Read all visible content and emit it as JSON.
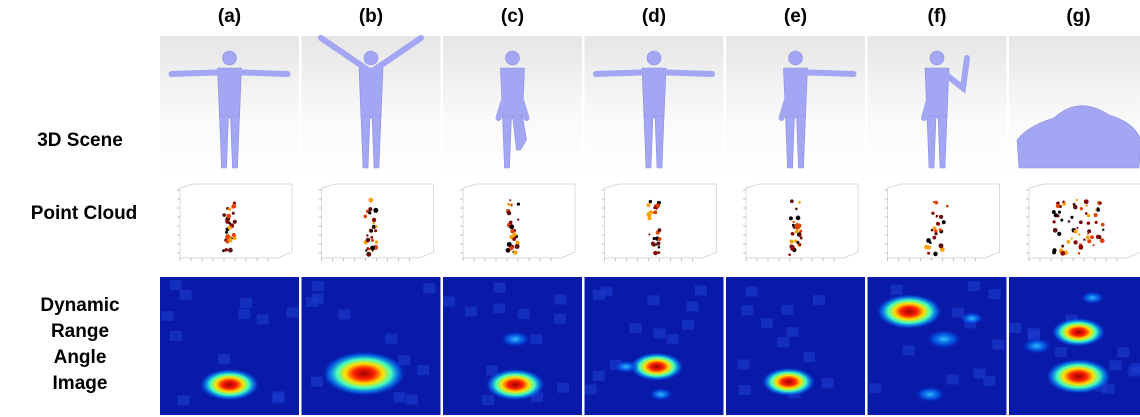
{
  "columns": [
    "(a)",
    "(b)",
    "(c)",
    "(d)",
    "(e)",
    "(f)",
    "(g)"
  ],
  "rows": [
    "3D Scene",
    "Point Cloud",
    "Dynamic Range Angle Image"
  ]
}
